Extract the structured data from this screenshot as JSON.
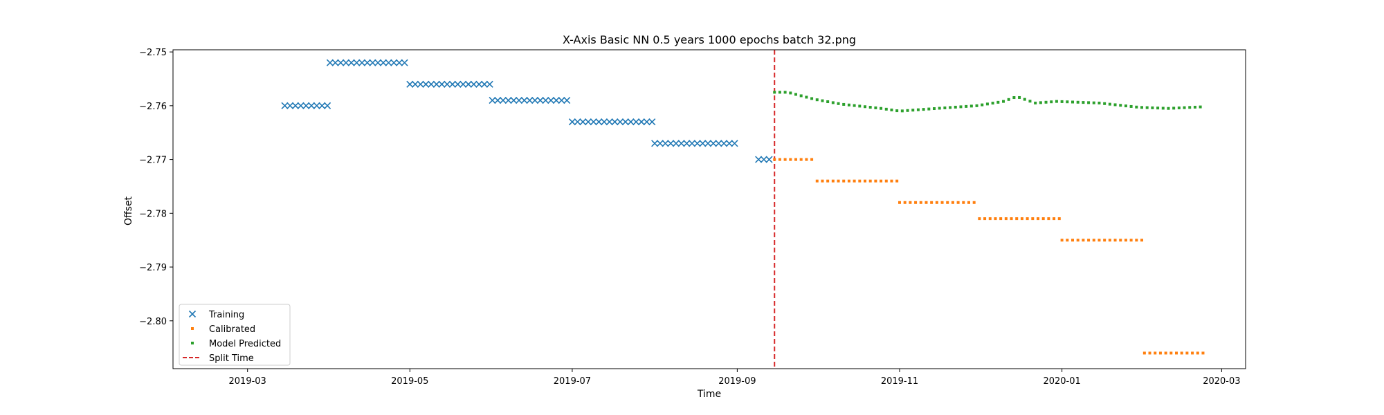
{
  "chart_data": {
    "type": "scatter",
    "title": "X-Axis Basic NN 0.5 years 1000 epochs batch 32.png",
    "xlabel": "Time",
    "ylabel": "Offset",
    "xlim": [
      "2019-02-01",
      "2020-03-10"
    ],
    "ylim": [
      -2.8089,
      -2.7496
    ],
    "x_ticks": [
      "2019-03",
      "2019-05",
      "2019-07",
      "2019-09",
      "2019-11",
      "2020-01",
      "2020-03"
    ],
    "y_ticks": [
      -2.75,
      -2.76,
      -2.77,
      -2.78,
      -2.79,
      -2.8
    ],
    "y_tick_labels": [
      "−2.75",
      "−2.76",
      "−2.77",
      "−2.78",
      "−2.79",
      "−2.80"
    ],
    "grid": false,
    "legend_position": "lower-left",
    "split_time": "2019-09-15",
    "series": [
      {
        "name": "Training",
        "marker": "x",
        "color": "#1f77b4",
        "segments": [
          {
            "start": "2019-03-15",
            "end": "2019-03-31",
            "every_days": 2,
            "value": -2.76
          },
          {
            "start": "2019-04-01",
            "end": "2019-04-30",
            "every_days": 2,
            "value": -2.752
          },
          {
            "start": "2019-05-01",
            "end": "2019-05-31",
            "every_days": 2,
            "value": -2.756
          },
          {
            "start": "2019-06-01",
            "end": "2019-06-30",
            "every_days": 2,
            "value": -2.759
          },
          {
            "start": "2019-07-01",
            "end": "2019-07-31",
            "every_days": 2,
            "value": -2.763
          },
          {
            "start": "2019-08-01",
            "end": "2019-08-31",
            "every_days": 2,
            "value": -2.767
          },
          {
            "start": "2019-09-09",
            "end": "2019-09-14",
            "every_days": 2,
            "value": -2.77
          }
        ]
      },
      {
        "name": "Calibrated",
        "marker": "dot",
        "color": "#ff7f0e",
        "segments": [
          {
            "start": "2019-09-15",
            "end": "2019-09-30",
            "every_days": 2,
            "value": -2.77
          },
          {
            "start": "2019-10-01",
            "end": "2019-10-31",
            "every_days": 2,
            "value": -2.774
          },
          {
            "start": "2019-11-01",
            "end": "2019-11-30",
            "every_days": 2,
            "value": -2.778
          },
          {
            "start": "2019-12-01",
            "end": "2019-12-31",
            "every_days": 2,
            "value": -2.781
          },
          {
            "start": "2020-01-01",
            "end": "2020-01-31",
            "every_days": 2,
            "value": -2.785
          },
          {
            "start": "2020-02-01",
            "end": "2020-02-23",
            "every_days": 2,
            "value": -2.806
          }
        ]
      },
      {
        "name": "Model Predicted",
        "marker": "dot",
        "color": "#2ca02c",
        "every_days": 2,
        "anchors": [
          [
            "2019-09-15",
            -2.7575
          ],
          [
            "2019-09-20",
            -2.7575
          ],
          [
            "2019-09-30",
            -2.7588
          ],
          [
            "2019-10-10",
            -2.7597
          ],
          [
            "2019-10-25",
            -2.7605
          ],
          [
            "2019-11-01",
            -2.761
          ],
          [
            "2019-11-15",
            -2.7605
          ],
          [
            "2019-11-30",
            -2.76
          ],
          [
            "2019-12-10",
            -2.7592
          ],
          [
            "2019-12-15",
            -2.7583
          ],
          [
            "2019-12-22",
            -2.7595
          ],
          [
            "2019-12-30",
            -2.7592
          ],
          [
            "2020-01-15",
            -2.7595
          ],
          [
            "2020-01-30",
            -2.7603
          ],
          [
            "2020-02-10",
            -2.7605
          ],
          [
            "2020-02-23",
            -2.7602
          ]
        ]
      },
      {
        "name": "Split Time",
        "marker": "dashed-line",
        "color": "#d62728"
      }
    ]
  }
}
